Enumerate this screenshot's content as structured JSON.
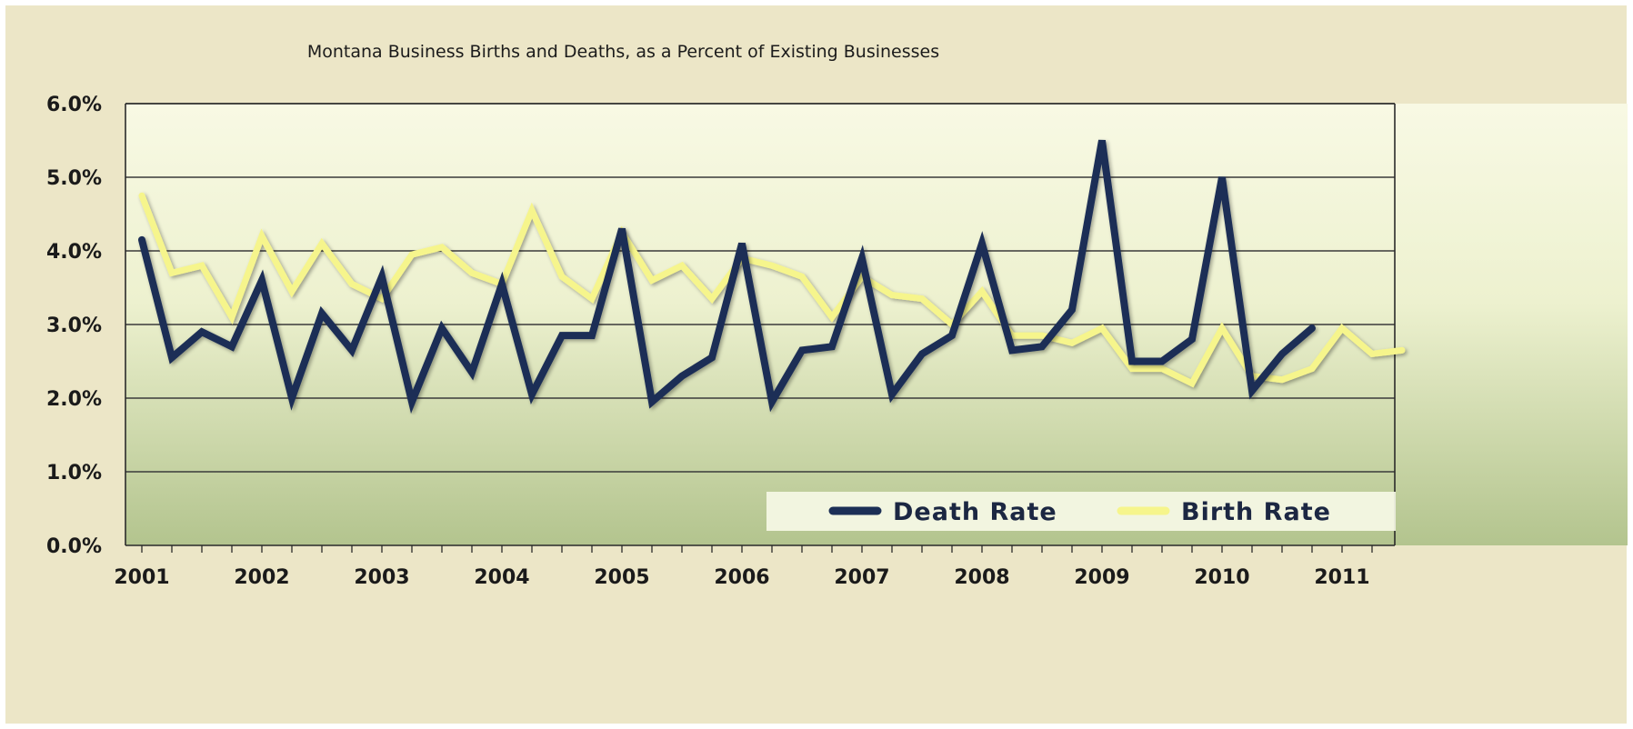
{
  "chart_data": {
    "type": "line",
    "title": "Montana Business Births and Deaths, as a Percent of Existing Businesses",
    "xlabel": "",
    "ylabel": "",
    "ylim": [
      0,
      6
    ],
    "y_ticks": [
      "0.0%",
      "1.0%",
      "2.0%",
      "3.0%",
      "4.0%",
      "5.0%",
      "6.0%"
    ],
    "x_ticks": [
      "2001",
      "2002",
      "2003",
      "2004",
      "2005",
      "2006",
      "2007",
      "2008",
      "2009",
      "2010",
      "2011"
    ],
    "grid": true,
    "legend_position": "bottom-right",
    "colors": {
      "death": "#1c2f56",
      "birth": "#f6f58c",
      "plot_top": "#f8f9e4",
      "plot_bottom": "#b9c994",
      "frame": "#ece6c7"
    },
    "series": [
      {
        "name": "Death Rate",
        "x": [
          "2001 Q1",
          "2001 Q2",
          "2001 Q3",
          "2001 Q4",
          "2002 Q1",
          "2002 Q2",
          "2002 Q3",
          "2002 Q4",
          "2003 Q1",
          "2003 Q2",
          "2003 Q3",
          "2003 Q4",
          "2004 Q1",
          "2004 Q2",
          "2004 Q3",
          "2004 Q4",
          "2005 Q1",
          "2005 Q2",
          "2005 Q3",
          "2005 Q4",
          "2006 Q1",
          "2006 Q2",
          "2006 Q3",
          "2006 Q4",
          "2007 Q1",
          "2007 Q2",
          "2007 Q3",
          "2007 Q4",
          "2008 Q1",
          "2008 Q2",
          "2008 Q3",
          "2008 Q4",
          "2009 Q1",
          "2009 Q2",
          "2009 Q3",
          "2009 Q4",
          "2010 Q1",
          "2010 Q2",
          "2010 Q3",
          "2010 Q4"
        ],
        "values": [
          4.15,
          2.55,
          2.9,
          2.7,
          3.6,
          2.0,
          3.15,
          2.65,
          3.65,
          1.95,
          2.95,
          2.35,
          3.55,
          2.05,
          2.85,
          2.85,
          4.3,
          1.95,
          2.3,
          2.55,
          4.1,
          1.95,
          2.65,
          2.7,
          3.9,
          2.05,
          2.6,
          2.85,
          4.1,
          2.65,
          2.7,
          3.2,
          5.5,
          2.5,
          2.5,
          2.8,
          5.0,
          2.1,
          2.6,
          2.95
        ]
      },
      {
        "name": "Birth Rate",
        "x": [
          "2001 Q1",
          "2001 Q2",
          "2001 Q3",
          "2001 Q4",
          "2002 Q1",
          "2002 Q2",
          "2002 Q3",
          "2002 Q4",
          "2003 Q1",
          "2003 Q2",
          "2003 Q3",
          "2003 Q4",
          "2004 Q1",
          "2004 Q2",
          "2004 Q3",
          "2004 Q4",
          "2005 Q1",
          "2005 Q2",
          "2005 Q3",
          "2005 Q4",
          "2006 Q1",
          "2006 Q2",
          "2006 Q3",
          "2006 Q4",
          "2007 Q1",
          "2007 Q2",
          "2007 Q3",
          "2007 Q4",
          "2008 Q1",
          "2008 Q2",
          "2008 Q3",
          "2008 Q4",
          "2009 Q1",
          "2009 Q2",
          "2009 Q3",
          "2009 Q4",
          "2010 Q1",
          "2010 Q2",
          "2010 Q3",
          "2010 Q4",
          "2011 Q1",
          "2011 Q2",
          "2011 Q3"
        ],
        "values": [
          4.75,
          3.7,
          3.8,
          3.1,
          4.2,
          3.45,
          4.1,
          3.55,
          3.35,
          3.95,
          4.05,
          3.7,
          3.55,
          4.55,
          3.65,
          3.35,
          4.25,
          3.6,
          3.8,
          3.35,
          3.9,
          3.8,
          3.65,
          3.1,
          3.65,
          3.4,
          3.35,
          3.0,
          3.45,
          2.85,
          2.85,
          2.75,
          2.95,
          2.4,
          2.4,
          2.2,
          2.95,
          2.3,
          2.25,
          2.4,
          2.95,
          2.6,
          2.65
        ]
      }
    ]
  }
}
